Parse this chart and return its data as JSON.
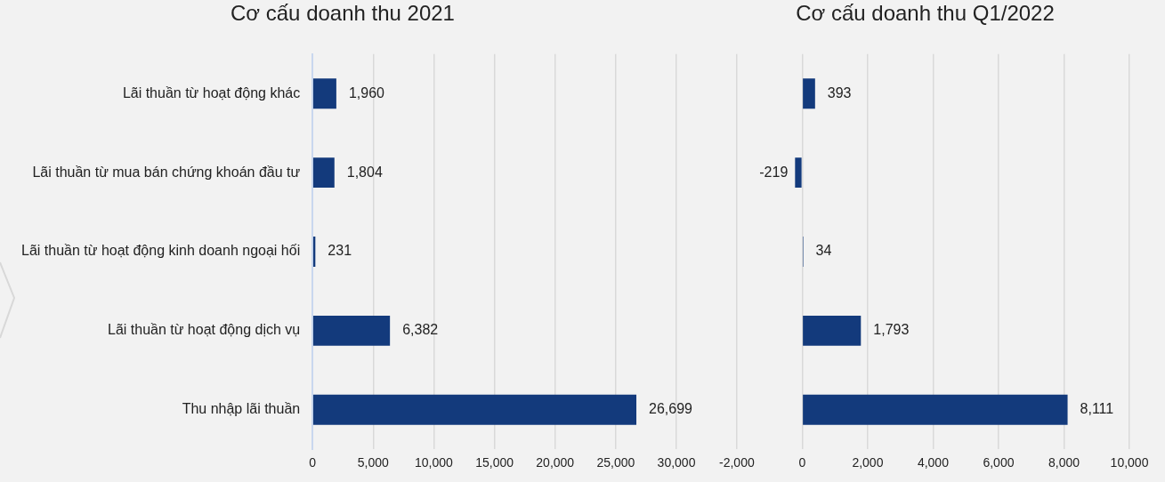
{
  "chart_data": [
    {
      "type": "bar",
      "orientation": "horizontal",
      "title": "Cơ cấu doanh thu 2021",
      "categories": [
        "Lãi thuần từ hoạt động khác",
        "Lãi thuần từ mua bán chứng khoán đầu tư",
        "Lãi thuần từ hoạt động kinh doanh ngoại hối",
        "Lãi thuần từ hoạt động dịch vụ",
        "Thu nhập lãi thuần"
      ],
      "values": [
        1960,
        1804,
        231,
        6382,
        26699
      ],
      "color": "#133a7c",
      "xlim": [
        0,
        30000
      ],
      "xticks": [
        {
          "value": 0,
          "label": "0"
        },
        {
          "value": 5000,
          "label": "5,000"
        },
        {
          "value": 10000,
          "label": "10,000"
        },
        {
          "value": 15000,
          "label": "15,000"
        },
        {
          "value": 20000,
          "label": "20,000"
        },
        {
          "value": 25000,
          "label": "25,000"
        },
        {
          "value": 30000,
          "label": "30,000"
        }
      ],
      "grid": "x",
      "legend": false,
      "data_labels": true,
      "value_labels": [
        "1,960",
        "1,804",
        "231",
        "6,382",
        "26,699"
      ]
    },
    {
      "type": "bar",
      "orientation": "horizontal",
      "title": "Cơ cấu doanh thu Q1/2022",
      "categories": [
        null,
        null,
        null,
        null,
        null
      ],
      "values": [
        393,
        -219,
        34,
        1793,
        8111
      ],
      "color": "#133a7c",
      "xlim": [
        -2000,
        10000
      ],
      "xticks": [
        {
          "value": -2000,
          "label": "-2,000"
        },
        {
          "value": 0,
          "label": "0"
        },
        {
          "value": 2000,
          "label": "2,000"
        },
        {
          "value": 4000,
          "label": "4,000"
        },
        {
          "value": 6000,
          "label": "6,000"
        },
        {
          "value": 8000,
          "label": "8,000"
        },
        {
          "value": 10000,
          "label": "10,000"
        }
      ],
      "grid": "x",
      "legend": false,
      "data_labels": true,
      "tick_labels": "x",
      "value_labels": [
        "393",
        "-219",
        "34",
        "1,793",
        "8,111"
      ]
    }
  ]
}
